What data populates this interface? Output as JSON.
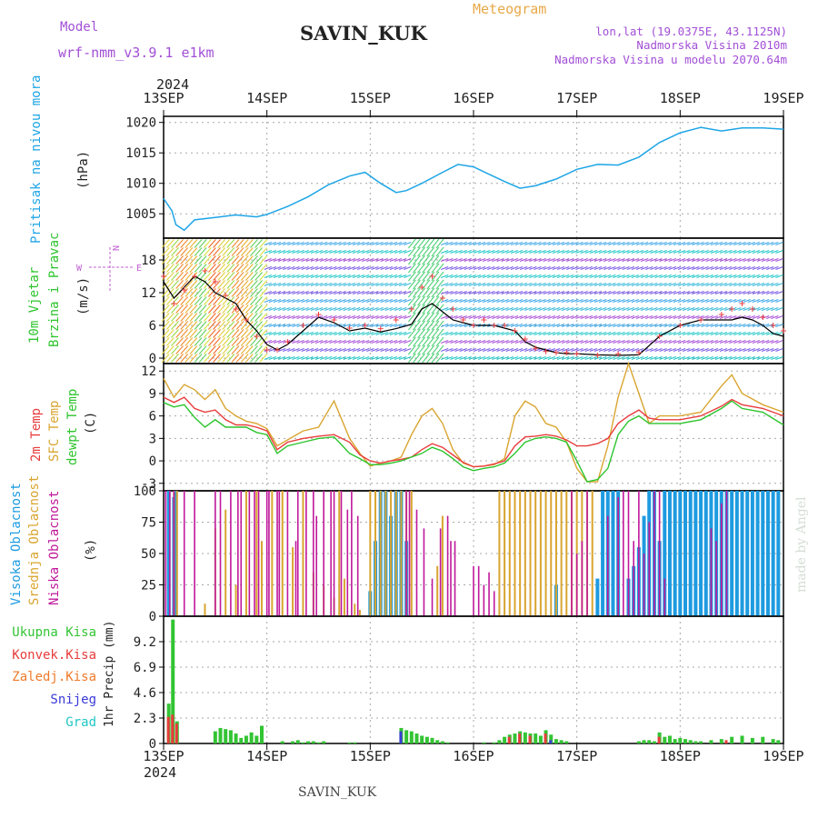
{
  "header": {
    "model_label": "Model",
    "model_name": "wrf-nmm_v3.9.1 e1km",
    "station": "SAVIN_KUK",
    "product": "Meteogram",
    "coords": "lon,lat (19.0375E, 43.1125N)",
    "altitude": "Nadmorska Visina 2010m",
    "model_altitude": "Nadmorska Visina u modelu 2070.64m",
    "year": "2024",
    "footer": "SAVIN_KUK",
    "credit": "made by Angel"
  },
  "colors": {
    "pressure": "#1ea5e6",
    "temp2m": "#e83c3c",
    "sfc": "#d9a530",
    "dew": "#2cc42c",
    "high": "#1e9be0",
    "mid": "#d9a530",
    "low": "#c0189b",
    "total": "#33c433",
    "conv": "#e83c3c",
    "frozen": "#f07a2a",
    "snow": "#3a3ad8",
    "grad": "#22c6c6",
    "label_purple": "#a24fd6",
    "label_orange": "#e8a847"
  },
  "time_axis": {
    "labels": [
      "13SEP",
      "14SEP",
      "15SEP",
      "16SEP",
      "17SEP",
      "18SEP",
      "19SEP"
    ]
  },
  "panels": {
    "pressure": {
      "label": "Pritisak na nivou mora",
      "unit": "(hPa)"
    },
    "wind": {
      "label_a": "10m Vjetar",
      "label_b": "Brzina i Pravac",
      "unit": "(m/s)",
      "compass_n": "N",
      "compass_e": "E",
      "compass_w": "W"
    },
    "temp": {
      "label_t2": "2m Temp",
      "label_sfc": "SFC Temp",
      "label_dew": "dewpt Temp",
      "unit": "(C)"
    },
    "cloud": {
      "label_high": "Visoka Oblacnost",
      "label_mid": "Srednja Oblacnost",
      "label_low": "Niska Oblacnost",
      "unit": "(%)"
    },
    "precip": {
      "label_total": "Ukupna Kisa",
      "label_conv": "Konvek.Kisa",
      "label_frozen": "Zaledj.Kisa",
      "label_snow": "Snijeg",
      "label_grad": "Grad",
      "unit": "1hr Precip (mm)"
    }
  },
  "chart_data": [
    {
      "type": "line",
      "name": "pressure",
      "ylabel": "(hPa)",
      "ylim": [
        1001,
        1021
      ],
      "yticks": [
        1005,
        1010,
        1015,
        1020
      ],
      "x_days": [
        0,
        0.08,
        0.12,
        0.2,
        0.3,
        0.5,
        0.7,
        0.9,
        1.0,
        1.2,
        1.4,
        1.6,
        1.8,
        1.95,
        2.1,
        2.25,
        2.35,
        2.5,
        2.7,
        2.85,
        3.0,
        3.15,
        3.3,
        3.45,
        3.6,
        3.8,
        4.0,
        4.2,
        4.4,
        4.6,
        4.8,
        4.9,
        5.0,
        5.2,
        5.4,
        5.6,
        5.8,
        6.0
      ],
      "values": [
        1007.5,
        1005.5,
        1003.2,
        1002.3,
        1004.0,
        1004.4,
        1004.8,
        1004.5,
        1004.9,
        1006.2,
        1007.8,
        1009.8,
        1011.2,
        1011.8,
        1010.0,
        1008.5,
        1008.8,
        1010.0,
        1011.8,
        1013.1,
        1012.7,
        1011.5,
        1010.3,
        1009.2,
        1009.6,
        1010.7,
        1012.3,
        1013.1,
        1013.0,
        1014.3,
        1016.7,
        1017.5,
        1018.3,
        1019.2,
        1018.6,
        1019.1,
        1019.1,
        1018.9
      ]
    },
    {
      "type": "line",
      "name": "wind",
      "ylabel": "(m/s)",
      "ylim": [
        -1,
        22
      ],
      "yticks": [
        0,
        6,
        12,
        18
      ],
      "x_days": [
        0,
        0.1,
        0.2,
        0.3,
        0.4,
        0.5,
        0.6,
        0.7,
        0.8,
        0.9,
        1.0,
        1.1,
        1.2,
        1.35,
        1.5,
        1.65,
        1.8,
        1.95,
        2.1,
        2.25,
        2.4,
        2.5,
        2.6,
        2.7,
        2.8,
        2.9,
        3.0,
        3.1,
        3.2,
        3.3,
        3.4,
        3.5,
        3.6,
        3.7,
        3.8,
        3.9,
        4.0,
        4.2,
        4.4,
        4.6,
        4.8,
        5.0,
        5.2,
        5.4,
        5.5,
        5.6,
        5.7,
        5.8,
        5.9,
        6.0
      ],
      "series": [
        {
          "name": "",
          "values": [
            14,
            11,
            13,
            15,
            14,
            12,
            11,
            10,
            7,
            5,
            2.5,
            1.5,
            2.5,
            5,
            7.5,
            6.5,
            5,
            5.5,
            4.8,
            5.4,
            6.2,
            9,
            10,
            8.5,
            7,
            6.5,
            6,
            6,
            6,
            5.5,
            5,
            3,
            2,
            1.5,
            1,
            0.8,
            0.8,
            0.6,
            0.5,
            0.6,
            4,
            6,
            7,
            7,
            7,
            7.5,
            7,
            6,
            4.5,
            4
          ]
        },
        {
          "name": "",
          "values": [
            15,
            10,
            12.5,
            15,
            16,
            14,
            11.5,
            9,
            7,
            4,
            1.5,
            1.5,
            3,
            6,
            8,
            7,
            5.5,
            6,
            5.4,
            7,
            9,
            13,
            15,
            11,
            9,
            7,
            6,
            7,
            6,
            6,
            5,
            3.5,
            1.8,
            1.2,
            1,
            1,
            0.8,
            0.5,
            0.8,
            1,
            4,
            6,
            7,
            8,
            9,
            10,
            9,
            7.5,
            6,
            5
          ]
        }
      ]
    },
    {
      "type": "line",
      "name": "temperature",
      "ylabel": "(C)",
      "ylim": [
        -4,
        13
      ],
      "yticks": [
        -3,
        0,
        3,
        6,
        9,
        12
      ],
      "x_days": [
        0,
        0.1,
        0.2,
        0.3,
        0.4,
        0.5,
        0.6,
        0.7,
        0.8,
        0.9,
        1.0,
        1.1,
        1.2,
        1.35,
        1.5,
        1.65,
        1.8,
        1.9,
        2.0,
        2.1,
        2.2,
        2.3,
        2.4,
        2.5,
        2.6,
        2.7,
        2.8,
        2.9,
        3.0,
        3.1,
        3.2,
        3.3,
        3.4,
        3.5,
        3.6,
        3.7,
        3.8,
        3.9,
        4.0,
        4.1,
        4.2,
        4.3,
        4.4,
        4.5,
        4.6,
        4.7,
        4.8,
        5.0,
        5.2,
        5.4,
        5.5,
        5.6,
        5.8,
        6.0
      ],
      "series": [
        {
          "name": "2m Temp",
          "values": [
            8.5,
            7.8,
            8.5,
            7.0,
            6.5,
            6.8,
            5.5,
            4.8,
            4.8,
            4.5,
            4.0,
            1.5,
            2.5,
            3.0,
            3.3,
            3.5,
            2.5,
            0.8,
            0,
            -0.3,
            0,
            0.2,
            0.5,
            1.5,
            2.3,
            1.8,
            0.8,
            -0.2,
            -0.8,
            -0.7,
            -0.4,
            0,
            2.0,
            3.2,
            3.3,
            3.5,
            3.3,
            2.8,
            2.0,
            2.0,
            2.3,
            3.0,
            5.0,
            6.0,
            6.8,
            5.7,
            5.5,
            5.5,
            6.0,
            7.3,
            8.2,
            7.5,
            7.0,
            6.0
          ]
        },
        {
          "name": "SFC Temp",
          "values": [
            11.0,
            8.5,
            10.2,
            9.5,
            8.2,
            9.5,
            7.0,
            6.0,
            5.3,
            5.0,
            4.3,
            2.0,
            2.8,
            4.0,
            4.5,
            8.0,
            3.0,
            1.0,
            -0.7,
            -0.3,
            0.0,
            0.5,
            3.5,
            6.0,
            7.0,
            5.0,
            1.5,
            -0.3,
            -0.8,
            -0.7,
            -0.5,
            0.3,
            6.0,
            8.0,
            7.2,
            5.0,
            4.5,
            2.5,
            -1.0,
            -2.8,
            -2.8,
            2.0,
            8.5,
            13.0,
            9.0,
            5.0,
            6.0,
            6.0,
            6.5,
            10.0,
            11.5,
            9.0,
            7.5,
            6.5
          ]
        },
        {
          "name": "dewpt Temp",
          "values": [
            7.8,
            7.2,
            7.5,
            5.8,
            4.5,
            5.5,
            4.5,
            4.5,
            4.5,
            3.8,
            3.5,
            1.0,
            2.0,
            2.5,
            3.0,
            3.2,
            1.0,
            0.3,
            -0.5,
            -0.5,
            -0.3,
            0,
            0.5,
            1.0,
            1.8,
            1.3,
            0.3,
            -0.8,
            -1.3,
            -1.0,
            -0.8,
            -0.3,
            1.0,
            2.5,
            3.0,
            3.2,
            3.0,
            2.5,
            0,
            -2.8,
            -2.5,
            -1.0,
            3.5,
            5.3,
            6.0,
            5.0,
            5.0,
            5.0,
            5.5,
            7.0,
            8.0,
            7.0,
            6.5,
            4.8
          ]
        }
      ]
    },
    {
      "type": "bar",
      "name": "cloud_cover",
      "ylabel": "(%)",
      "ylim": [
        0,
        100
      ],
      "yticks": [
        0,
        25,
        50,
        75,
        100
      ],
      "series": [
        {
          "name": "Visoka Oblacnost",
          "x_days": [
            0.05,
            0.1,
            0.12,
            2.0,
            2.05,
            2.1,
            2.15,
            2.2,
            2.25,
            2.3,
            2.35,
            3.8,
            4.2,
            4.25,
            4.3,
            4.35,
            4.4,
            4.5,
            4.55,
            4.6,
            4.65,
            4.7,
            4.75,
            4.8,
            4.85,
            4.9,
            4.95,
            5.0,
            5.05,
            5.1,
            5.15,
            5.2,
            5.25,
            5.3,
            5.35,
            5.4,
            5.45,
            5.5,
            5.55,
            5.6,
            5.65,
            5.7,
            5.75,
            5.8,
            5.85,
            5.9,
            5.95
          ],
          "values": [
            100,
            95,
            100,
            20,
            60,
            100,
            100,
            80,
            100,
            100,
            60,
            25,
            30,
            100,
            100,
            100,
            100,
            30,
            40,
            55,
            80,
            100,
            100,
            60,
            100,
            100,
            100,
            100,
            100,
            100,
            100,
            100,
            100,
            100,
            100,
            100,
            100,
            100,
            100,
            100,
            100,
            100,
            100,
            100,
            100,
            100,
            100
          ]
        },
        {
          "name": "Srednja Oblacnost",
          "x_days": [
            0.1,
            0.13,
            0.4,
            0.5,
            0.6,
            0.7,
            0.8,
            0.9,
            0.95,
            1.05,
            1.15,
            1.25,
            1.35,
            1.45,
            1.55,
            1.65,
            1.7,
            1.75,
            1.85,
            1.9,
            2.0,
            2.05,
            2.1,
            2.15,
            2.2,
            2.25,
            2.3,
            2.35,
            2.4,
            2.65,
            2.7,
            3.25,
            3.3,
            3.35,
            3.4,
            3.45,
            3.5,
            3.55,
            3.6,
            3.65,
            3.7,
            3.75,
            3.8,
            3.85,
            3.9,
            3.95,
            4.0,
            4.05,
            4.1,
            4.15
          ],
          "values": [
            100,
            100,
            10,
            70,
            85,
            25,
            100,
            100,
            60,
            100,
            100,
            55,
            100,
            35,
            25,
            15,
            100,
            30,
            10,
            5,
            100,
            100,
            100,
            100,
            100,
            100,
            100,
            100,
            100,
            40,
            80,
            100,
            100,
            100,
            100,
            100,
            100,
            100,
            100,
            100,
            100,
            100,
            100,
            100,
            100,
            100,
            100,
            100,
            100,
            100
          ]
        },
        {
          "name": "Niska Oblacnost",
          "x_days": [
            0.02,
            0.06,
            0.1,
            0.2,
            0.3,
            0.5,
            0.55,
            0.65,
            0.72,
            0.75,
            0.83,
            0.88,
            0.92,
            1.0,
            1.02,
            1.1,
            1.12,
            1.2,
            1.28,
            1.3,
            1.38,
            1.45,
            1.48,
            1.55,
            1.62,
            1.65,
            1.72,
            1.78,
            1.82,
            1.88,
            2.35,
            2.38,
            2.45,
            2.52,
            2.6,
            2.68,
            2.75,
            2.78,
            2.82,
            3.0,
            3.05,
            3.1,
            3.15,
            3.2,
            3.95,
            4.0,
            4.05,
            4.1,
            4.3,
            4.4,
            4.45,
            4.5,
            4.55,
            4.6,
            4.65,
            4.7,
            4.75,
            4.8,
            4.85,
            5.3,
            5.35,
            5.4,
            5.45
          ],
          "values": [
            100,
            100,
            100,
            100,
            100,
            100,
            100,
            100,
            100,
            100,
            100,
            100,
            100,
            100,
            100,
            100,
            100,
            100,
            60,
            100,
            100,
            100,
            80,
            100,
            100,
            100,
            100,
            85,
            100,
            80,
            100,
            100,
            85,
            70,
            30,
            70,
            80,
            60,
            60,
            40,
            40,
            25,
            35,
            20,
            100,
            50,
            60,
            100,
            80,
            95,
            100,
            100,
            60,
            100,
            50,
            75,
            100,
            100,
            30,
            70,
            60,
            90,
            100
          ]
        }
      ]
    },
    {
      "type": "bar",
      "name": "precipitation",
      "ylabel": "1hr Precip (mm)",
      "ylim": [
        0,
        11.5
      ],
      "yticks": [
        0,
        2.3,
        4.6,
        6.9,
        9.2
      ],
      "series": [
        {
          "name": "Ukupna Kisa",
          "x_days": [
            0.05,
            0.09,
            0.13,
            0.5,
            0.55,
            0.6,
            0.65,
            0.7,
            0.75,
            0.8,
            0.85,
            0.9,
            0.95,
            1.15,
            1.25,
            1.3,
            1.35,
            1.4,
            1.45,
            1.5,
            1.55,
            1.8,
            1.85,
            2.3,
            2.35,
            2.4,
            2.45,
            2.5,
            2.55,
            2.6,
            2.65,
            2.7,
            2.75,
            3.1,
            3.2,
            3.25,
            3.3,
            3.35,
            3.4,
            3.45,
            3.5,
            3.55,
            3.6,
            3.65,
            3.7,
            3.75,
            3.8,
            3.85,
            3.9,
            4.6,
            4.65,
            4.7,
            4.75,
            4.8,
            4.85,
            4.9,
            4.95,
            5.0,
            5.05,
            5.1,
            5.15,
            5.2,
            5.3,
            5.4,
            5.5,
            5.6,
            5.7,
            5.8,
            5.9,
            5.95
          ],
          "values": [
            3.6,
            11.2,
            2.0,
            1.1,
            1.4,
            1.3,
            1.2,
            0.9,
            0.5,
            0.7,
            1.0,
            0.7,
            1.6,
            0.2,
            0.2,
            0.3,
            0.1,
            0.2,
            0.2,
            0.1,
            0.2,
            0.1,
            0.1,
            1.4,
            1.2,
            1.1,
            0.9,
            0.7,
            0.6,
            0.5,
            0.3,
            0.2,
            0.1,
            0.1,
            0.1,
            0.3,
            0.6,
            0.8,
            0.9,
            1.1,
            1.0,
            0.9,
            0.9,
            0.7,
            1.2,
            0.8,
            0.4,
            0.3,
            0.2,
            0.2,
            0.3,
            0.3,
            0.2,
            1.0,
            0.6,
            0.7,
            0.4,
            0.5,
            0.4,
            0.3,
            0.2,
            0.2,
            0.3,
            0.4,
            0.6,
            0.7,
            0.5,
            0.6,
            0.4,
            0.3
          ]
        },
        {
          "name": "Konvek.Kisa",
          "x_days": [
            0.05,
            0.09,
            0.13,
            3.35,
            3.45,
            3.55,
            3.7,
            4.8,
            5.45
          ],
          "values": [
            2.4,
            2.6,
            1.8,
            0.6,
            0.9,
            0.7,
            0.9,
            0.6,
            0.3
          ]
        },
        {
          "name": "Snijeg",
          "x_days": [
            2.3,
            3.75
          ],
          "values": [
            1.1,
            0.3
          ]
        }
      ]
    }
  ]
}
